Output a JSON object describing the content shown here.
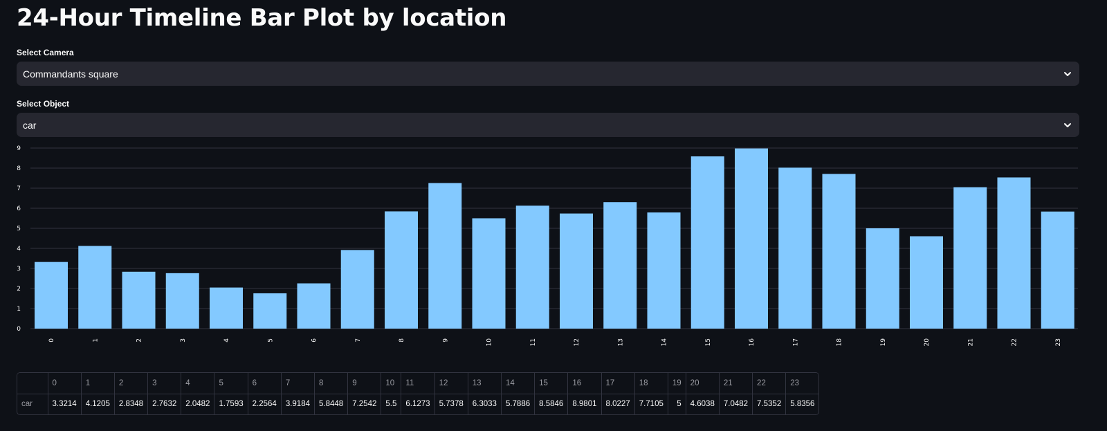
{
  "page": {
    "title": "24-Hour Timeline Bar Plot by location"
  },
  "camera_select": {
    "label": "Select Camera",
    "value": "Commandants square"
  },
  "object_select": {
    "label": "Select Object",
    "value": "car"
  },
  "icons": {
    "select_chevron": "chevron-down-icon"
  },
  "colors": {
    "background": "#0e1117",
    "bar": "#83c9ff",
    "select_bg": "#262730",
    "grid": "#31333f"
  },
  "chart_data": {
    "type": "bar",
    "categories": [
      "0",
      "1",
      "2",
      "3",
      "4",
      "5",
      "6",
      "7",
      "8",
      "9",
      "10",
      "11",
      "12",
      "13",
      "14",
      "15",
      "16",
      "17",
      "18",
      "19",
      "20",
      "21",
      "22",
      "23"
    ],
    "values": [
      3.3214,
      4.1205,
      2.8348,
      2.7632,
      2.0482,
      1.7593,
      2.2564,
      3.9184,
      5.8448,
      7.2542,
      5.5,
      6.1273,
      5.7378,
      6.3033,
      5.7886,
      8.5846,
      8.9801,
      8.0227,
      7.7105,
      5,
      4.6038,
      7.0482,
      7.5352,
      5.8356
    ],
    "yticks": [
      "0",
      "1",
      "2",
      "3",
      "4",
      "5",
      "6",
      "7",
      "8",
      "9"
    ],
    "ylim": [
      0,
      9
    ],
    "title": "",
    "xlabel": "",
    "ylabel": "",
    "grid": true
  },
  "table": {
    "corner": "",
    "columns": [
      "0",
      "1",
      "2",
      "3",
      "4",
      "5",
      "6",
      "7",
      "8",
      "9",
      "10",
      "11",
      "12",
      "13",
      "14",
      "15",
      "16",
      "17",
      "18",
      "19",
      "20",
      "21",
      "22",
      "23"
    ],
    "rows": [
      {
        "label": "car",
        "values": [
          "3.3214",
          "4.1205",
          "2.8348",
          "2.7632",
          "2.0482",
          "1.7593",
          "2.2564",
          "3.9184",
          "5.8448",
          "7.2542",
          "5.5",
          "6.1273",
          "5.7378",
          "6.3033",
          "5.7886",
          "8.5846",
          "8.9801",
          "8.0227",
          "7.7105",
          "5",
          "4.6038",
          "7.0482",
          "7.5352",
          "5.8356"
        ]
      }
    ]
  }
}
